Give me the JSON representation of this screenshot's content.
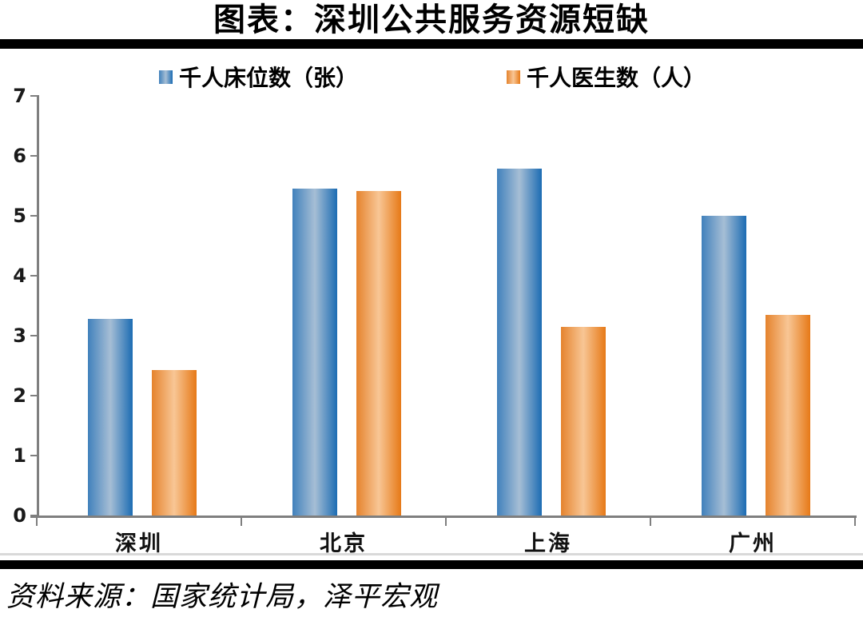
{
  "title": "图表：深圳公共服务资源短缺",
  "source_note": "资料来源：国家统计局，泽平宏观",
  "colors": {
    "axis": "#7f7f7f",
    "rule_black": "#000000",
    "rule_light_gray": "#d9d9d9",
    "blue_edge_left": "#4181bc",
    "blue_mid": "#a6bed5",
    "blue_edge_right": "#1c6cb3",
    "orange_edge_left": "#e5832d",
    "orange_mid": "#f8c695",
    "orange_edge_right": "#e67917"
  },
  "chart_data": {
    "type": "bar",
    "categories": [
      "深圳",
      "北京",
      "上海",
      "广州"
    ],
    "series": [
      {
        "name": "千人床位数（张）",
        "color_key": "blue",
        "values": [
          3.28,
          5.45,
          5.78,
          5.0
        ]
      },
      {
        "name": "千人医生数（人）",
        "color_key": "orange",
        "values": [
          2.42,
          5.41,
          3.15,
          3.35
        ]
      }
    ],
    "title": "图表：深圳公共服务资源短缺",
    "xlabel": "",
    "ylabel": "",
    "ylim": [
      0,
      7
    ],
    "yticks": [
      0,
      1,
      2,
      3,
      4,
      5,
      6,
      7
    ],
    "grid": false,
    "legend_position": "top"
  }
}
